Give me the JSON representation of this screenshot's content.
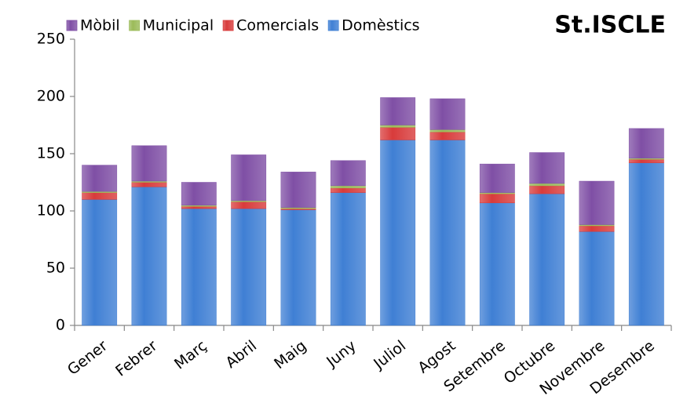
{
  "chart_data": {
    "type": "stacked_bar",
    "title": "St.ISCLE",
    "categories": [
      "Gener",
      "Febrer",
      "Març",
      "Abril",
      "Maig",
      "Juny",
      "Juliol",
      "Agost",
      "Setembre",
      "Octubre",
      "Novembre",
      "Desembre"
    ],
    "series": [
      {
        "name": "Mòbil",
        "color": "#7f4fa5",
        "values": [
          23,
          31,
          20,
          40,
          31,
          22,
          24,
          27,
          25,
          27,
          38,
          26
        ]
      },
      {
        "name": "Municipal",
        "color": "#9bbb59",
        "values": [
          1,
          1,
          1,
          1,
          1,
          2,
          2,
          2,
          1,
          2,
          1,
          1
        ]
      },
      {
        "name": "Comercials",
        "color": "#d83b3b",
        "values": [
          6,
          4,
          2,
          6,
          1,
          4,
          11,
          7,
          8,
          7,
          5,
          3
        ]
      },
      {
        "name": "Domèstics",
        "color": "#3f7fd4",
        "values": [
          110,
          121,
          102,
          102,
          101,
          116,
          162,
          162,
          107,
          115,
          82,
          142
        ]
      }
    ],
    "ylim": [
      0,
      250
    ],
    "yticks": [
      0,
      50,
      100,
      150,
      200,
      250
    ],
    "grid": false,
    "legend": "top"
  }
}
